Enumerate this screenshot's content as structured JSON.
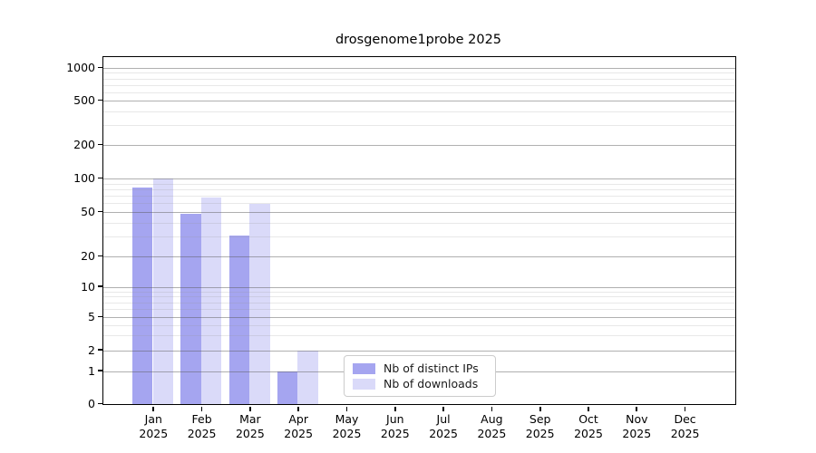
{
  "chart_data": {
    "type": "bar",
    "title": "drosgenome1probe 2025",
    "categories": [
      "Jan 2025",
      "Feb 2025",
      "Mar 2025",
      "Apr 2025",
      "May 2025",
      "Jun 2025",
      "Jul 2025",
      "Aug 2025",
      "Sep 2025",
      "Oct 2025",
      "Nov 2025",
      "Dec 2025"
    ],
    "series": [
      {
        "name": "Nb of distinct IPs",
        "color": "#a5a5f0",
        "values": [
          83,
          48,
          31,
          1,
          0,
          0,
          0,
          0,
          0,
          0,
          0,
          0
        ]
      },
      {
        "name": "Nb of downloads",
        "color": "#dadaf9",
        "values": [
          100,
          68,
          59,
          2,
          0,
          0,
          0,
          0,
          0,
          0,
          0,
          0
        ]
      }
    ],
    "yscale": "symlog",
    "y_ticks": [
      0,
      1,
      2,
      5,
      10,
      20,
      50,
      100,
      200,
      500,
      1000
    ],
    "y_minor_ticks": [
      3,
      4,
      6,
      7,
      8,
      9,
      30,
      40,
      60,
      70,
      80,
      90,
      300,
      400,
      600,
      700,
      800,
      900
    ],
    "ylim": [
      0,
      1300
    ],
    "xlabel": "",
    "ylabel": "",
    "grid": true,
    "grid_over_bars": true,
    "legend_position": "lower center, inside axes"
  },
  "colors": {
    "major_grid": "#b2b2b2",
    "minor_grid": "#e7e7e7",
    "spine": "#000000",
    "background": "#ffffff"
  }
}
